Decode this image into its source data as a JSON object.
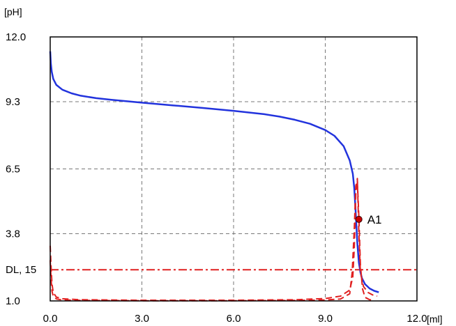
{
  "chart_data": {
    "type": "line",
    "title": "",
    "ylabel": "[pH]",
    "xlabel": "[ml]",
    "xlim": [
      0,
      12
    ],
    "ylim": [
      1,
      12
    ],
    "grid": true,
    "x_ticks": [
      0,
      3,
      6,
      9,
      12
    ],
    "x_tick_labels": [
      "0.0",
      "3.0",
      "6.0",
      "9.0",
      "12.0"
    ],
    "y_ticks": [
      12,
      9.3,
      6.5,
      3.8,
      1
    ],
    "y_tick_labels": [
      "12.0",
      "9.3",
      "6.5",
      "3.8",
      "1.0"
    ],
    "series": [
      {
        "role": "titration-curve",
        "color": "#2233dd",
        "style": "solid",
        "x": [
          0,
          0.02,
          0.05,
          0.1,
          0.2,
          0.4,
          0.7,
          1.0,
          1.5,
          2.0,
          3.0,
          4.0,
          5.0,
          6.0,
          7.0,
          7.5,
          8.0,
          8.5,
          9.0,
          9.3,
          9.6,
          9.8,
          9.9,
          9.95,
          10.0,
          10.05,
          10.1,
          10.15,
          10.2,
          10.3,
          10.45,
          10.6,
          10.75
        ],
        "y": [
          11.4,
          10.9,
          10.55,
          10.25,
          10.0,
          9.8,
          9.65,
          9.55,
          9.45,
          9.38,
          9.26,
          9.15,
          9.04,
          8.92,
          8.78,
          8.68,
          8.55,
          8.38,
          8.12,
          7.88,
          7.45,
          6.85,
          6.3,
          5.7,
          4.6,
          3.4,
          2.6,
          2.2,
          1.95,
          1.7,
          1.52,
          1.42,
          1.36
        ]
      },
      {
        "role": "first-derivative",
        "color": "#e02020",
        "style": "dashed",
        "x": [
          0,
          0.03,
          0.06,
          0.1,
          0.2,
          0.4,
          1,
          3,
          6,
          8,
          9,
          9.5,
          9.8,
          9.9,
          9.95,
          10,
          10.05,
          10.1,
          10.15,
          10.25,
          10.4,
          10.55,
          10.7
        ],
        "y": [
          3.3,
          2.4,
          1.7,
          1.35,
          1.16,
          1.09,
          1.05,
          1.03,
          1.03,
          1.05,
          1.1,
          1.2,
          1.45,
          2.0,
          3.2,
          5.5,
          6.1,
          3.8,
          2.2,
          1.6,
          1.35,
          1.25,
          1.2
        ]
      },
      {
        "role": "second-derivative",
        "color": "#e02020",
        "style": "dashed",
        "x": [
          0,
          0.03,
          0.06,
          0.1,
          0.2,
          0.4,
          1,
          3,
          6,
          8,
          9,
          9.5,
          9.8,
          9.88,
          9.95,
          10.0,
          10.05,
          10.1,
          10.15,
          10.22,
          10.3,
          10.45,
          10.6
        ],
        "y": [
          2.7,
          1.9,
          1.4,
          1.2,
          1.08,
          1.04,
          1.02,
          1.01,
          1.01,
          1.02,
          1.04,
          1.08,
          1.3,
          2.2,
          4.0,
          5.8,
          6.0,
          4.5,
          2.5,
          1.5,
          1.15,
          1.05,
          1.03
        ]
      }
    ],
    "threshold": {
      "label": "DL, 15",
      "y": 2.3,
      "color": "#e02020",
      "style": "dash-dot"
    },
    "endpoint": {
      "label": "A1",
      "x": 10.1,
      "y": 4.4,
      "color": "#cc0000"
    }
  }
}
